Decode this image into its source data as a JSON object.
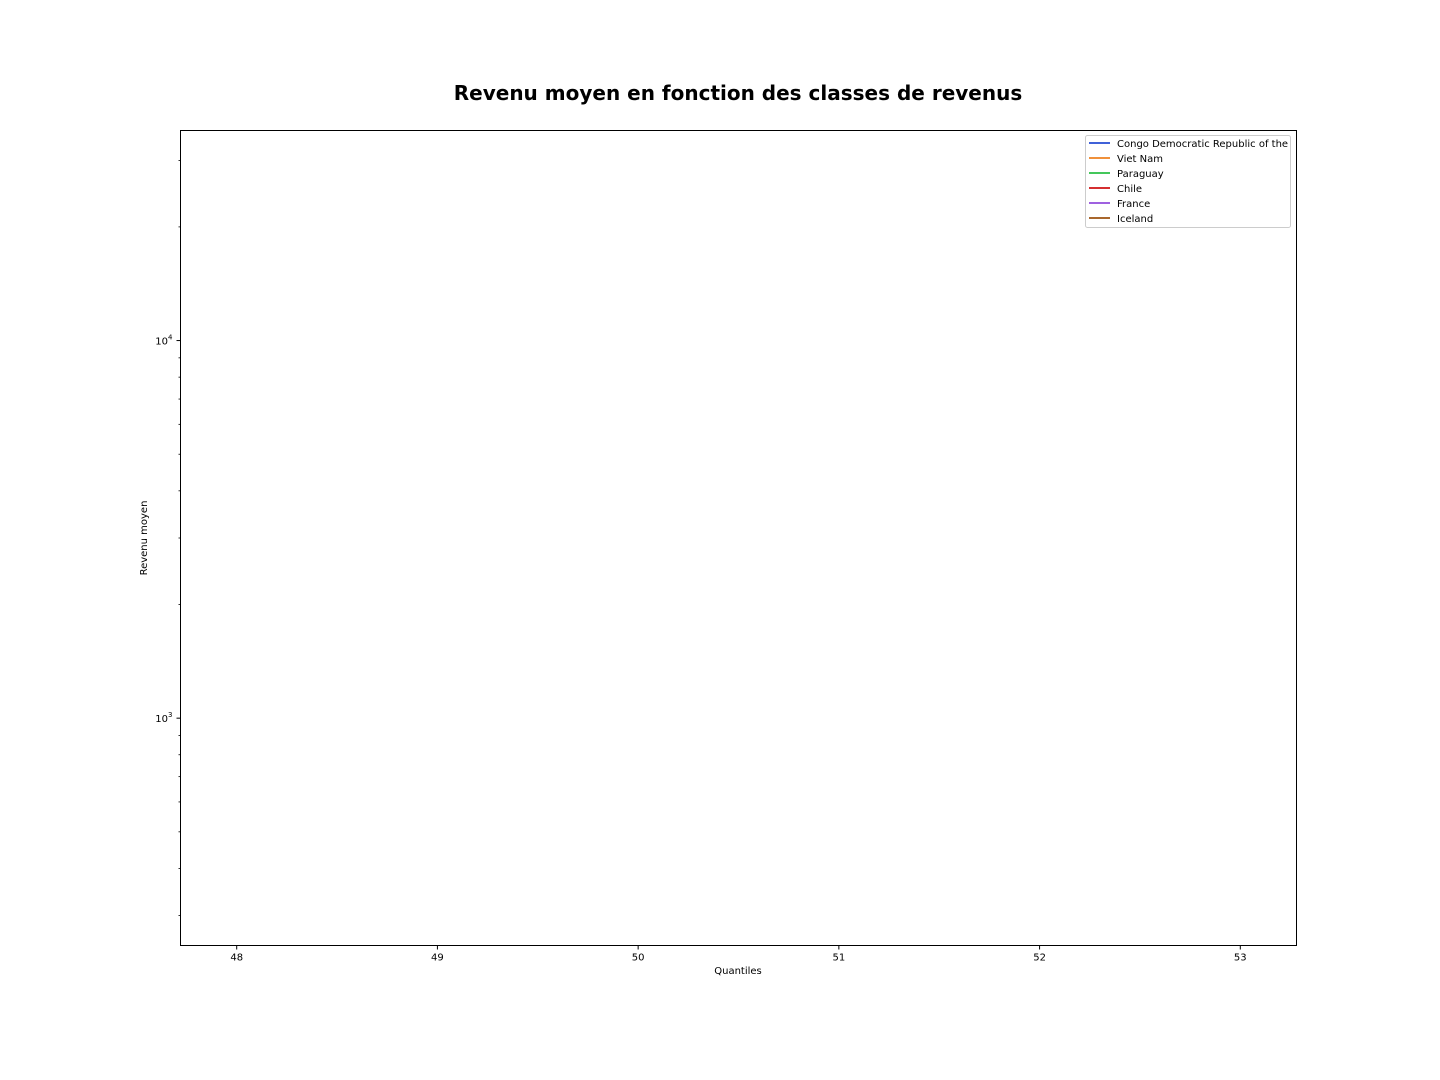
{
  "chart_data": {
    "type": "line",
    "title": "Revenu moyen en fonction des classes de revenus",
    "xlabel": "Quantiles",
    "ylabel": "Revenu moyen",
    "x_ticks": [
      48,
      49,
      50,
      51,
      52,
      53
    ],
    "x_tick_labels": [
      "48",
      "49",
      "50",
      "51",
      "52",
      "53"
    ],
    "xlim": [
      47.72,
      53.28
    ],
    "yscale": "log",
    "ylim": [
      250,
      36000
    ],
    "y_ticks": [
      {
        "value": 1000,
        "base": "10",
        "exp": "3"
      },
      {
        "value": 10000,
        "base": "10",
        "exp": "4"
      }
    ],
    "grid": false,
    "legend_position": "top-right",
    "series": [
      {
        "name": "Congo Democratic Republic of the",
        "color": "#4061d8",
        "x": [],
        "y": []
      },
      {
        "name": "Viet Nam",
        "color": "#f0913b",
        "x": [],
        "y": []
      },
      {
        "name": "Paraguay",
        "color": "#44c75b",
        "x": [],
        "y": []
      },
      {
        "name": "Chile",
        "color": "#d52f30",
        "x": [],
        "y": []
      },
      {
        "name": "France",
        "color": "#9f61e0",
        "x": [],
        "y": []
      },
      {
        "name": "Iceland",
        "color": "#a9672d",
        "x": [],
        "y": []
      }
    ]
  }
}
